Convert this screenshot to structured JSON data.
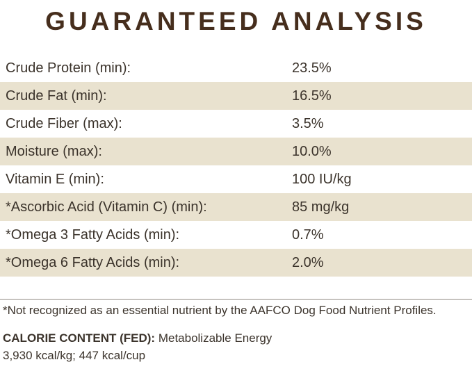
{
  "title": "GUARANTEED ANALYSIS",
  "table": {
    "rows": [
      {
        "label": "Crude Protein (min):",
        "value": "23.5%"
      },
      {
        "label": "Crude Fat (min):",
        "value": "16.5%"
      },
      {
        "label": "Crude Fiber (max):",
        "value": "3.5%"
      },
      {
        "label": "Moisture (max):",
        "value": "10.0%"
      },
      {
        "label": "Vitamin E (min):",
        "value": "100 IU/kg"
      },
      {
        "label": "*Ascorbic Acid (Vitamin C) (min):",
        "value": "85 mg/kg"
      },
      {
        "label": "*Omega 3 Fatty Acids (min):",
        "value": "0.7%"
      },
      {
        "label": "*Omega 6 Fatty Acids (min):",
        "value": "2.0%"
      }
    ]
  },
  "footnote": "*Not recognized as an essential nutrient by the AAFCO Dog Food Nutrient Profiles.",
  "calorie": {
    "heading": "CALORIE CONTENT (FED):",
    "description": "Metabolizable Energy",
    "values": "3,930 kcal/kg; 447 kcal/cup"
  },
  "colors": {
    "title_brown": "#462e1d",
    "stripe_beige": "#e9e2cf",
    "body_text": "#3b332b"
  }
}
